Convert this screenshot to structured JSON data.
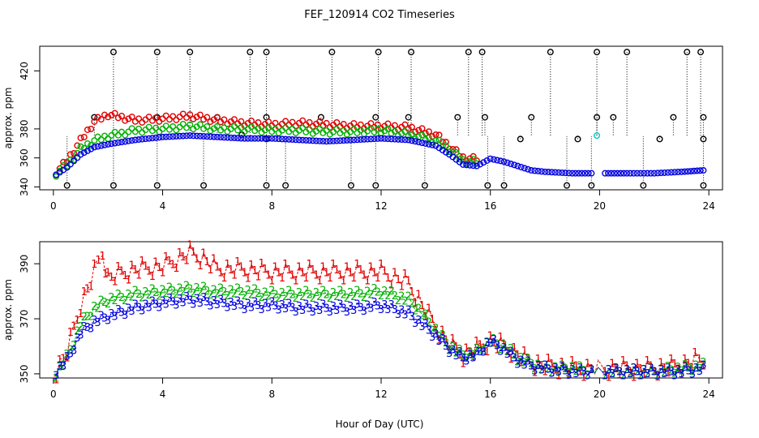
{
  "chart_data": {
    "title": "FEF_120914  CO2 Timeseries",
    "xlabel": "Hour of Day (UTC)",
    "panels": [
      {
        "type": "scatter",
        "ylabel": "approx. ppm",
        "xlim": [
          -0.5,
          24.5
        ],
        "ylim": [
          338,
          437
        ],
        "xticks": [
          0,
          4,
          8,
          12,
          16,
          20,
          24
        ],
        "yticks": [
          340,
          360,
          380,
          420
        ],
        "spike_series_color": "#000000",
        "series": [
          {
            "color": "#e00000",
            "x": [
              0.1,
              0.5,
              1.0,
              1.5,
              2.0,
              3.0,
              4.0,
              5.0,
              6.0,
              7.0,
              8.0,
              9.0,
              10.0,
              11.0,
              12.0,
              13.0,
              14.0,
              14.5,
              15.0,
              15.5
            ],
            "y": [
              350,
              358,
              372,
              385,
              390,
              386,
              387,
              389,
              386,
              384,
              383,
              384,
              383,
              382,
              382,
              381,
              376,
              368,
              360,
              359
            ]
          },
          {
            "color": "#00b000",
            "x": [
              0.1,
              0.5,
              1.0,
              1.5,
              2.0,
              3.0,
              4.0,
              5.0,
              6.0,
              7.0,
              8.0,
              9.0,
              10.0,
              11.0,
              12.0,
              13.0,
              14.0,
              14.5,
              15.0,
              15.5
            ],
            "y": [
              349,
              355,
              366,
              372,
              375,
              379,
              380,
              382,
              380,
              380,
              379,
              379,
              378,
              378,
              379,
              376,
              372,
              366,
              358,
              357
            ]
          },
          {
            "color": "#0000e0",
            "x": [
              0.1,
              0.5,
              1.0,
              1.5,
              2.0,
              3.0,
              4.0,
              5.0,
              6.0,
              7.0,
              8.0,
              9.0,
              10.0,
              11.0,
              12.0,
              13.0,
              14.0,
              14.5,
              15.0,
              15.5,
              16.0,
              16.5,
              17.0,
              17.5,
              18.0,
              19.0,
              19.7,
              20.2,
              21.0,
              22.0,
              23.0,
              23.8
            ],
            "y": [
              349,
              354,
              363,
              368,
              370,
              373,
              375,
              376,
              375,
              374,
              374,
              373,
              372,
              373,
              374,
              373,
              369,
              363,
              356,
              355,
              360,
              358,
              355,
              352,
              351,
              350,
              350,
              350,
              350,
              350,
              351,
              352
            ]
          },
          {
            "color": "#00c8c8",
            "x": [
              19.9
            ],
            "y": [
              376
            ]
          }
        ],
        "spikes": [
          {
            "x": 2.2,
            "y": 433
          },
          {
            "x": 3.8,
            "y": 433
          },
          {
            "x": 5.0,
            "y": 433
          },
          {
            "x": 7.2,
            "y": 433
          },
          {
            "x": 7.8,
            "y": 433
          },
          {
            "x": 10.2,
            "y": 433
          },
          {
            "x": 11.9,
            "y": 433
          },
          {
            "x": 13.1,
            "y": 433
          },
          {
            "x": 15.2,
            "y": 433
          },
          {
            "x": 15.7,
            "y": 433
          },
          {
            "x": 18.2,
            "y": 433
          },
          {
            "x": 19.9,
            "y": 433
          },
          {
            "x": 21.0,
            "y": 433
          },
          {
            "x": 23.2,
            "y": 433
          },
          {
            "x": 23.7,
            "y": 433
          },
          {
            "x": 1.5,
            "y": 388
          },
          {
            "x": 3.8,
            "y": 388
          },
          {
            "x": 6.0,
            "y": 388
          },
          {
            "x": 7.8,
            "y": 388
          },
          {
            "x": 9.8,
            "y": 388
          },
          {
            "x": 11.8,
            "y": 388
          },
          {
            "x": 13.0,
            "y": 388
          },
          {
            "x": 14.8,
            "y": 388
          },
          {
            "x": 15.8,
            "y": 388
          },
          {
            "x": 17.5,
            "y": 388
          },
          {
            "x": 19.9,
            "y": 388
          },
          {
            "x": 20.5,
            "y": 388
          },
          {
            "x": 22.7,
            "y": 388
          },
          {
            "x": 23.8,
            "y": 388
          },
          {
            "x": 0.5,
            "y": 341
          },
          {
            "x": 2.2,
            "y": 341
          },
          {
            "x": 3.8,
            "y": 341
          },
          {
            "x": 5.5,
            "y": 341
          },
          {
            "x": 7.8,
            "y": 341
          },
          {
            "x": 8.5,
            "y": 341
          },
          {
            "x": 10.9,
            "y": 341
          },
          {
            "x": 11.8,
            "y": 341
          },
          {
            "x": 13.6,
            "y": 341
          },
          {
            "x": 15.9,
            "y": 341
          },
          {
            "x": 16.5,
            "y": 341
          },
          {
            "x": 18.8,
            "y": 341
          },
          {
            "x": 19.7,
            "y": 341
          },
          {
            "x": 21.6,
            "y": 341
          },
          {
            "x": 23.8,
            "y": 341
          },
          {
            "x": 6.9,
            "y": 376
          },
          {
            "x": 7.8,
            "y": 373
          },
          {
            "x": 17.1,
            "y": 373
          },
          {
            "x": 19.2,
            "y": 373
          },
          {
            "x": 22.2,
            "y": 373
          },
          {
            "x": 23.8,
            "y": 373
          }
        ]
      },
      {
        "type": "line",
        "ylabel": "approx. ppm",
        "xlim": [
          -0.5,
          24.5
        ],
        "ylim": [
          348.5,
          398
        ],
        "xticks": [
          0,
          4,
          8,
          12,
          16,
          20,
          24
        ],
        "yticks": [
          350,
          370,
          390
        ],
        "series": [
          {
            "label": "1",
            "color": "#e00000",
            "x": [
              0.1,
              0.5,
              1.0,
              1.5,
              1.8,
              2.0,
              3.0,
              4.0,
              5.0,
              5.5,
              6.0,
              7.0,
              8.0,
              9.0,
              10.0,
              11.0,
              12.0,
              13.0,
              13.5,
              14.0,
              14.5,
              15.0,
              15.5,
              16.0,
              16.5,
              17.0,
              17.5,
              18.0,
              19.0,
              19.7,
              20.2,
              21.0,
              22.0,
              23.0,
              23.5,
              23.8
            ],
            "y": [
              351,
              358,
              375,
              387,
              394,
              385,
              388,
              389,
              394,
              392,
              388,
              388,
              387,
              387,
              387,
              387,
              387,
              383,
              375,
              367,
              361,
              357,
              359,
              362,
              360,
              357,
              354,
              353,
              352,
              352,
              352,
              352,
              352,
              353,
              355,
              354
            ]
          },
          {
            "label": "2",
            "color": "#00b000",
            "x": [
              0.1,
              0.5,
              1.0,
              1.5,
              2.0,
              3.0,
              4.0,
              5.0,
              6.0,
              7.0,
              8.0,
              9.0,
              10.0,
              11.0,
              12.0,
              13.0,
              13.5,
              14.0,
              14.5,
              15.0,
              15.5,
              16.0,
              16.5,
              17.0,
              17.5,
              18.0,
              19.0,
              19.7,
              20.2,
              21.0,
              22.0,
              23.0,
              23.8
            ],
            "y": [
              350,
              356,
              368,
              374,
              377,
              379,
              380,
              381,
              380,
              380,
              379,
              379,
              379,
              379,
              380,
              377,
              372,
              366,
              360,
              357,
              358,
              362,
              360,
              356,
              354,
              352,
              352,
              351,
              351,
              351,
              351,
              352,
              353
            ]
          },
          {
            "label": "3",
            "color": "#0000e0",
            "x": [
              0.1,
              0.5,
              1.0,
              1.5,
              2.0,
              3.0,
              4.0,
              5.0,
              6.0,
              7.0,
              8.0,
              9.0,
              10.0,
              11.0,
              12.0,
              13.0,
              13.5,
              14.0,
              14.5,
              15.0,
              15.5,
              16.0,
              16.5,
              17.0,
              17.5,
              18.0,
              19.0,
              19.7,
              20.2,
              21.0,
              22.0,
              23.0,
              23.8
            ],
            "y": [
              351,
              355,
              365,
              369,
              371,
              374,
              376,
              377,
              376,
              375,
              375,
              374,
              374,
              374,
              375,
              372,
              368,
              364,
              359,
              356,
              357,
              362,
              359,
              355,
              353,
              352,
              351,
              351,
              351,
              351,
              351,
              351,
              352
            ]
          }
        ]
      }
    ]
  }
}
